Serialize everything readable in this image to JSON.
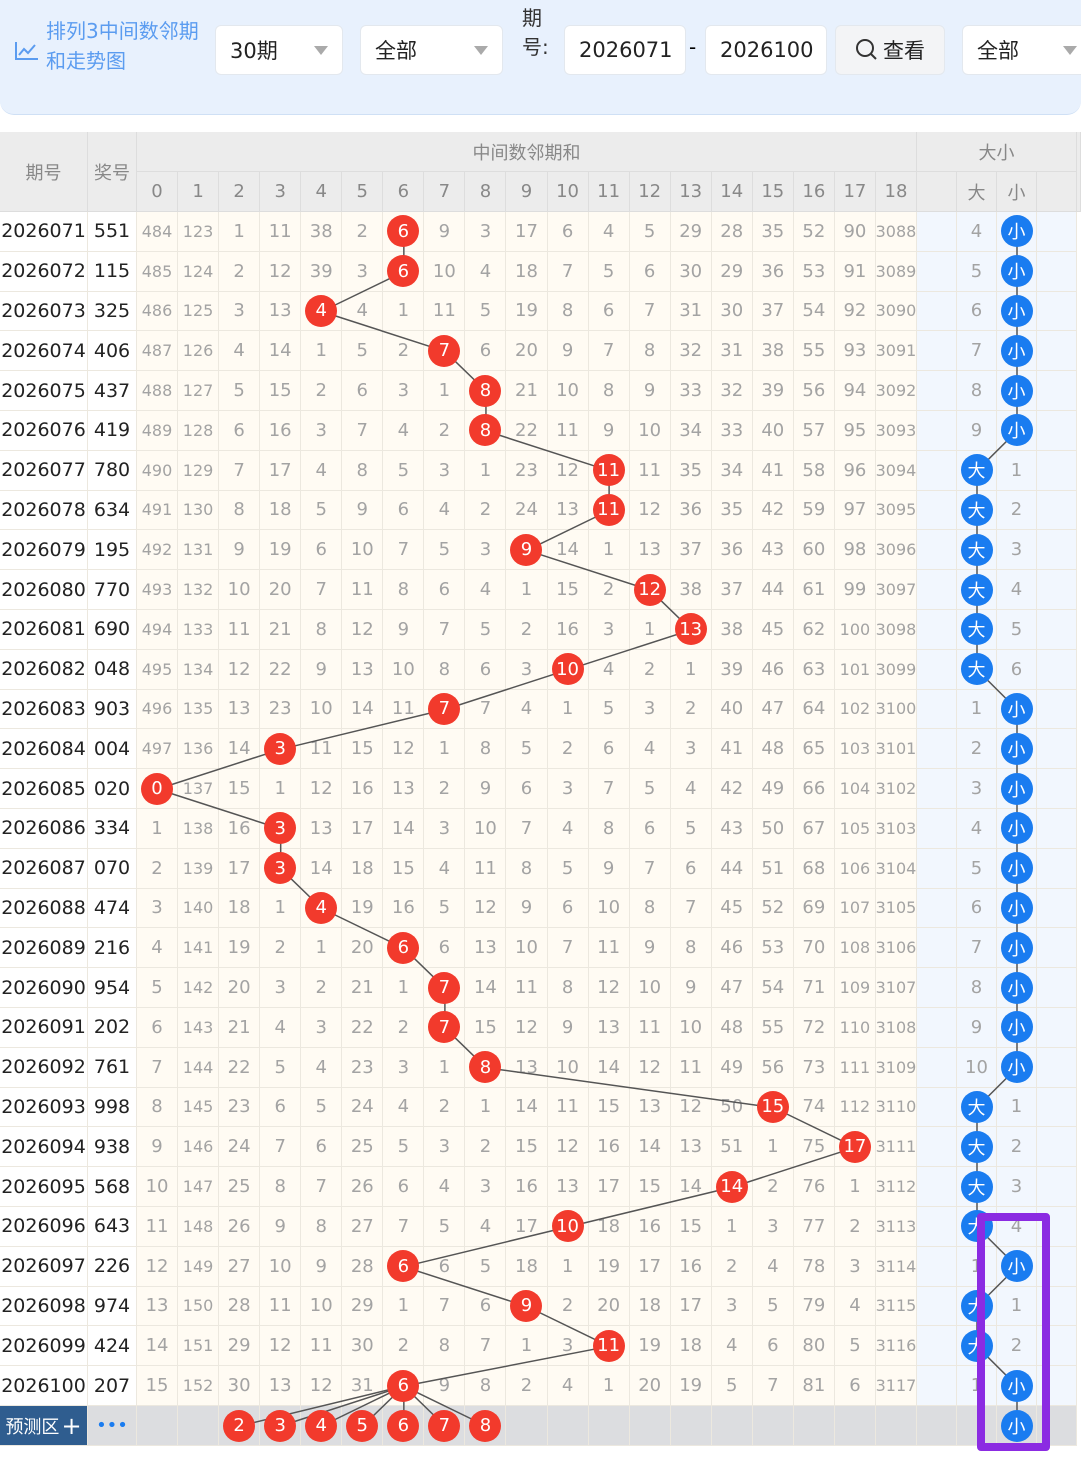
{
  "toolbar": {
    "title": "排列3中间数邻期和走势图",
    "period_select": "30期",
    "type_select": "全部",
    "issue_label": "期号:",
    "issue_from": "2026071",
    "issue_to": "2026100",
    "dash": "-",
    "view_button": "查看",
    "filter_select": "全部"
  },
  "table": {
    "col_issue": "期号",
    "col_number": "奖号",
    "group_main": "中间数邻期和",
    "group_size": "大小",
    "sub_cols": [
      "0",
      "1",
      "2",
      "3",
      "4",
      "5",
      "6",
      "7",
      "8",
      "9",
      "10",
      "11",
      "12",
      "13",
      "14",
      "15",
      "16",
      "17",
      "18"
    ],
    "size_cols": [
      "",
      "大",
      "小",
      ""
    ],
    "rows": [
      [
        "2026071",
        "551",
        6,
        [
          484,
          123,
          1,
          11,
          38,
          2,
          6,
          9,
          3,
          17,
          6,
          4,
          5,
          29,
          28,
          35,
          52,
          90,
          3088
        ],
        "4",
        "小"
      ],
      [
        "2026072",
        "115",
        6,
        [
          485,
          124,
          2,
          12,
          39,
          3,
          6,
          10,
          4,
          18,
          7,
          5,
          6,
          30,
          29,
          36,
          53,
          91,
          3089
        ],
        "5",
        "小"
      ],
      [
        "2026073",
        "325",
        4,
        [
          486,
          125,
          3,
          13,
          4,
          4,
          1,
          11,
          5,
          19,
          8,
          6,
          7,
          31,
          30,
          37,
          54,
          92,
          3090
        ],
        "6",
        "小"
      ],
      [
        "2026074",
        "406",
        7,
        [
          487,
          126,
          4,
          14,
          1,
          5,
          2,
          7,
          6,
          20,
          9,
          7,
          8,
          32,
          31,
          38,
          55,
          93,
          3091
        ],
        "7",
        "小"
      ],
      [
        "2026075",
        "437",
        8,
        [
          488,
          127,
          5,
          15,
          2,
          6,
          3,
          1,
          8,
          21,
          10,
          8,
          9,
          33,
          32,
          39,
          56,
          94,
          3092
        ],
        "8",
        "小"
      ],
      [
        "2026076",
        "419",
        8,
        [
          489,
          128,
          6,
          16,
          3,
          7,
          4,
          2,
          8,
          22,
          11,
          9,
          10,
          34,
          33,
          40,
          57,
          95,
          3093
        ],
        "9",
        "小"
      ],
      [
        "2026077",
        "780",
        11,
        [
          490,
          129,
          7,
          17,
          4,
          8,
          5,
          3,
          1,
          23,
          12,
          11,
          11,
          35,
          34,
          41,
          58,
          96,
          3094
        ],
        "大",
        "1"
      ],
      [
        "2026078",
        "634",
        11,
        [
          491,
          130,
          8,
          18,
          5,
          9,
          6,
          4,
          2,
          24,
          13,
          11,
          12,
          36,
          35,
          42,
          59,
          97,
          3095
        ],
        "大",
        "2"
      ],
      [
        "2026079",
        "195",
        9,
        [
          492,
          131,
          9,
          19,
          6,
          10,
          7,
          5,
          3,
          9,
          14,
          1,
          13,
          37,
          36,
          43,
          60,
          98,
          3096
        ],
        "大",
        "3"
      ],
      [
        "2026080",
        "770",
        12,
        [
          493,
          132,
          10,
          20,
          7,
          11,
          8,
          6,
          4,
          1,
          15,
          2,
          12,
          38,
          37,
          44,
          61,
          99,
          3097
        ],
        "大",
        "4"
      ],
      [
        "2026081",
        "690",
        13,
        [
          494,
          133,
          11,
          21,
          8,
          12,
          9,
          7,
          5,
          2,
          16,
          3,
          1,
          13,
          38,
          45,
          62,
          100,
          3098
        ],
        "大",
        "5"
      ],
      [
        "2026082",
        "048",
        10,
        [
          495,
          134,
          12,
          22,
          9,
          13,
          10,
          8,
          6,
          3,
          10,
          4,
          2,
          1,
          39,
          46,
          63,
          101,
          3099
        ],
        "大",
        "6"
      ],
      [
        "2026083",
        "903",
        7,
        [
          496,
          135,
          13,
          23,
          10,
          14,
          11,
          7,
          7,
          4,
          1,
          5,
          3,
          2,
          40,
          47,
          64,
          102,
          3100
        ],
        "1",
        "小"
      ],
      [
        "2026084",
        "004",
        3,
        [
          497,
          136,
          14,
          3,
          11,
          15,
          12,
          1,
          8,
          5,
          2,
          6,
          4,
          3,
          41,
          48,
          65,
          103,
          3101
        ],
        "2",
        "小"
      ],
      [
        "2026085",
        "020",
        0,
        [
          0,
          137,
          15,
          1,
          12,
          16,
          13,
          2,
          9,
          6,
          3,
          7,
          5,
          4,
          42,
          49,
          66,
          104,
          3102
        ],
        "3",
        "小"
      ],
      [
        "2026086",
        "334",
        3,
        [
          1,
          138,
          16,
          3,
          13,
          17,
          14,
          3,
          10,
          7,
          4,
          8,
          6,
          5,
          43,
          50,
          67,
          105,
          3103
        ],
        "4",
        "小"
      ],
      [
        "2026087",
        "070",
        3,
        [
          2,
          139,
          17,
          3,
          14,
          18,
          15,
          4,
          11,
          8,
          5,
          9,
          7,
          6,
          44,
          51,
          68,
          106,
          3104
        ],
        "5",
        "小"
      ],
      [
        "2026088",
        "474",
        4,
        [
          3,
          140,
          18,
          1,
          4,
          19,
          16,
          5,
          12,
          9,
          6,
          10,
          8,
          7,
          45,
          52,
          69,
          107,
          3105
        ],
        "6",
        "小"
      ],
      [
        "2026089",
        "216",
        6,
        [
          4,
          141,
          19,
          2,
          1,
          20,
          6,
          6,
          13,
          10,
          7,
          11,
          9,
          8,
          46,
          53,
          70,
          108,
          3106
        ],
        "7",
        "小"
      ],
      [
        "2026090",
        "954",
        7,
        [
          5,
          142,
          20,
          3,
          2,
          21,
          1,
          7,
          14,
          11,
          8,
          12,
          10,
          9,
          47,
          54,
          71,
          109,
          3107
        ],
        "8",
        "小"
      ],
      [
        "2026091",
        "202",
        7,
        [
          6,
          143,
          21,
          4,
          3,
          22,
          2,
          7,
          15,
          12,
          9,
          13,
          11,
          10,
          48,
          55,
          72,
          110,
          3108
        ],
        "9",
        "小"
      ],
      [
        "2026092",
        "761",
        8,
        [
          7,
          144,
          22,
          5,
          4,
          23,
          3,
          1,
          8,
          13,
          10,
          14,
          12,
          11,
          49,
          56,
          73,
          111,
          3109
        ],
        "10",
        "小"
      ],
      [
        "2026093",
        "998",
        15,
        [
          8,
          145,
          23,
          6,
          5,
          24,
          4,
          2,
          1,
          14,
          11,
          15,
          13,
          12,
          50,
          15,
          74,
          112,
          3110
        ],
        "大",
        "1"
      ],
      [
        "2026094",
        "938",
        17,
        [
          9,
          146,
          24,
          7,
          6,
          25,
          5,
          3,
          2,
          15,
          12,
          16,
          14,
          13,
          51,
          1,
          75,
          17,
          3111
        ],
        "大",
        "2"
      ],
      [
        "2026095",
        "568",
        14,
        [
          10,
          147,
          25,
          8,
          7,
          26,
          6,
          4,
          3,
          16,
          13,
          17,
          15,
          14,
          14,
          2,
          76,
          1,
          3112
        ],
        "大",
        "3"
      ],
      [
        "2026096",
        "643",
        10,
        [
          11,
          148,
          26,
          9,
          8,
          27,
          7,
          5,
          4,
          17,
          10,
          18,
          16,
          15,
          1,
          3,
          77,
          2,
          3113
        ],
        "大",
        "4"
      ],
      [
        "2026097",
        "226",
        6,
        [
          12,
          149,
          27,
          10,
          9,
          28,
          6,
          6,
          5,
          18,
          1,
          19,
          17,
          16,
          2,
          4,
          78,
          3,
          3114
        ],
        "1",
        "小"
      ],
      [
        "2026098",
        "974",
        9,
        [
          13,
          150,
          28,
          11,
          10,
          29,
          1,
          7,
          6,
          9,
          2,
          20,
          18,
          17,
          3,
          5,
          79,
          4,
          3115
        ],
        "大",
        "1"
      ],
      [
        "2026099",
        "424",
        11,
        [
          14,
          151,
          29,
          12,
          11,
          30,
          2,
          8,
          7,
          1,
          3,
          11,
          19,
          18,
          4,
          6,
          80,
          5,
          3116
        ],
        "大",
        "2"
      ],
      [
        "2026100",
        "207",
        6,
        [
          15,
          152,
          30,
          13,
          12,
          31,
          6,
          9,
          8,
          2,
          4,
          1,
          20,
          19,
          5,
          7,
          81,
          6,
          3117
        ],
        "1",
        "小"
      ]
    ],
    "predict": {
      "label": "预测区",
      "plus": "+",
      "more": "•••",
      "balls": [
        "2",
        "3",
        "4",
        "5",
        "6",
        "7",
        "8"
      ],
      "size": "小"
    }
  },
  "colors": {
    "red_ball": "#f23a2c",
    "blue_ball": "#1a7cf0",
    "highlight_box": "#8b2be2",
    "title": "#5b9cf0"
  }
}
